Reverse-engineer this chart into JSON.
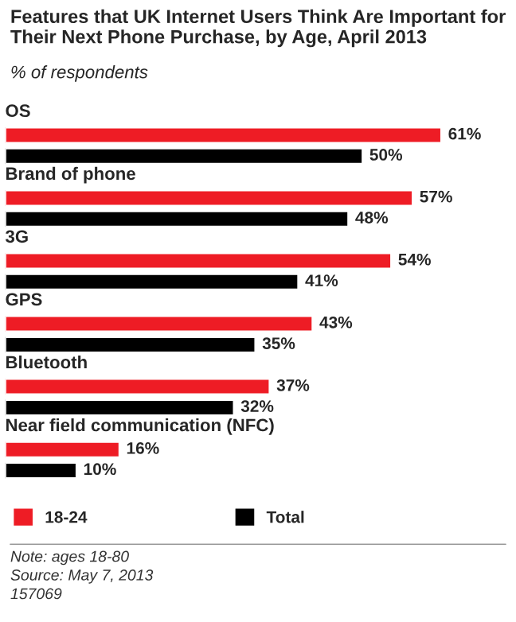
{
  "chart_data": {
    "type": "bar",
    "orientation": "horizontal",
    "title": "Features that UK Internet Users Think Are Important for Their Next Phone Purchase, by Age, April 2013",
    "subtitle": "% of respondents",
    "categories": [
      "OS",
      "Brand of phone",
      "3G",
      "GPS",
      "Bluetooth",
      "Near field communication (NFC)"
    ],
    "series": [
      {
        "name": "18-24",
        "color": "#ee1c25",
        "values": [
          61,
          57,
          54,
          43,
          37,
          16
        ],
        "value_labels": [
          "61%",
          "57%",
          "54%",
          "43%",
          "37%",
          "16%"
        ]
      },
      {
        "name": "Total",
        "color": "#000000",
        "values": [
          50,
          48,
          41,
          35,
          32,
          10
        ],
        "value_labels": [
          "50%",
          "48%",
          "41%",
          "35%",
          "32%",
          "10%"
        ]
      }
    ],
    "legend": "bottom",
    "annotations": [
      "Note: ages 18-80",
      "Source: May 7, 2013",
      "157069"
    ]
  }
}
